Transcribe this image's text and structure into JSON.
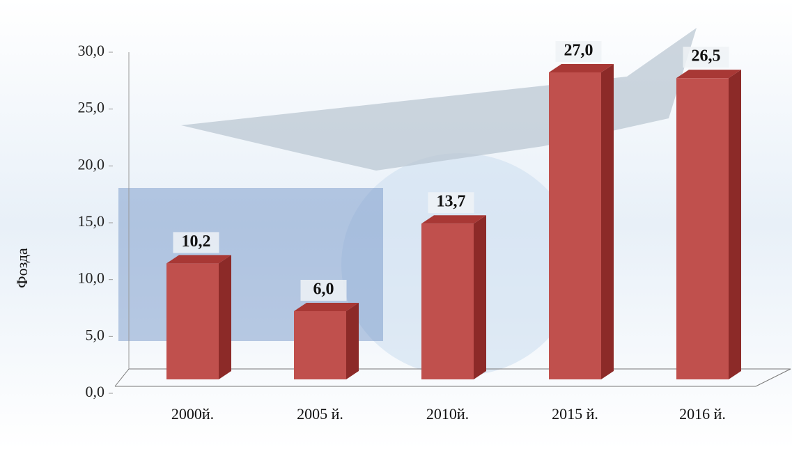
{
  "chart_data": {
    "type": "bar3d",
    "y_label": "Фозда",
    "categories": [
      "2000й.",
      "2005 й.",
      "2010й.",
      "2015 й.",
      "2016 й."
    ],
    "values": [
      10.2,
      6.0,
      13.7,
      27.0,
      26.5
    ],
    "value_labels": [
      "10,2",
      "6,0",
      "13,7",
      "27,0",
      "26,5"
    ],
    "color": "#c0504d",
    "ylim": [
      0,
      30
    ],
    "yticks": [
      {
        "value": 0,
        "label": "0,0"
      },
      {
        "value": 5,
        "label": "5,0"
      },
      {
        "value": 10,
        "label": "10,0"
      },
      {
        "value": 15,
        "label": "15,0"
      },
      {
        "value": 20,
        "label": "20,0"
      },
      {
        "value": 25,
        "label": "25,0"
      },
      {
        "value": 30,
        "label": "30,0"
      }
    ]
  }
}
